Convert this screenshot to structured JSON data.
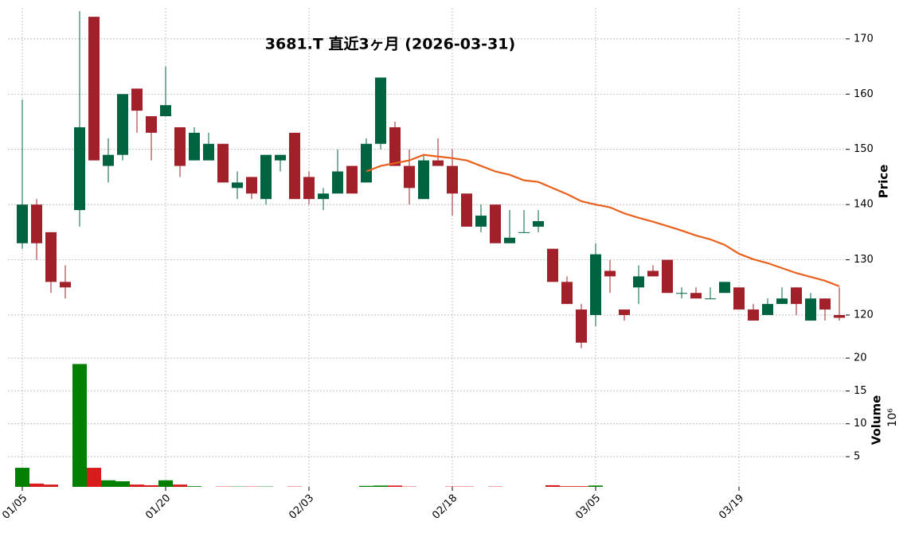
{
  "chart_data": [
    {
      "type": "candlestick",
      "title": "3681.T  直近3ヶ月 (2026-03-31)",
      "ylabel": "Price",
      "up_color": "#006340",
      "down_color": "#a1202a",
      "open": [
        133,
        140,
        135,
        126,
        139,
        174,
        147,
        149,
        161,
        156,
        156,
        154,
        148,
        148,
        151,
        143,
        145,
        141,
        148,
        153,
        145,
        141,
        142,
        147,
        144,
        151,
        154,
        147,
        141,
        148,
        147,
        142,
        136,
        140,
        133,
        135,
        136,
        132,
        126,
        121,
        120,
        128,
        121,
        125,
        128,
        130,
        124,
        124,
        123,
        124,
        125,
        121,
        120,
        122,
        125,
        119,
        123,
        120
      ],
      "high": [
        159,
        141,
        135,
        129,
        175,
        174,
        152,
        160,
        161,
        156,
        165,
        154,
        154,
        153,
        151,
        146,
        145,
        149,
        149,
        153,
        146,
        143,
        150,
        147,
        152,
        163,
        155,
        150,
        149,
        152,
        150,
        142,
        140,
        140,
        139,
        139,
        139,
        132,
        127,
        122,
        133,
        130,
        121,
        129,
        129,
        130,
        125,
        125,
        125,
        126,
        125,
        122,
        123,
        125,
        125,
        124,
        123,
        125
      ],
      "low": [
        132,
        130,
        124,
        123,
        136,
        148,
        144,
        148,
        153,
        148,
        156,
        145,
        148,
        148,
        144,
        141,
        141,
        140,
        146,
        141,
        140,
        139,
        142,
        142,
        144,
        150,
        147,
        140,
        141,
        147,
        138,
        136,
        135,
        133,
        133,
        135,
        135,
        126,
        122,
        114,
        118,
        124,
        119,
        122,
        127,
        124,
        123,
        123,
        123,
        124,
        121,
        119,
        120,
        122,
        120,
        119,
        119,
        119
      ],
      "close": [
        140,
        133,
        126,
        125,
        154,
        148,
        149,
        160,
        157,
        153,
        158,
        147,
        153,
        151,
        144,
        144,
        142,
        149,
        149,
        141,
        141,
        142,
        146,
        142,
        151,
        163,
        147,
        143,
        148,
        147,
        142,
        136,
        138,
        133,
        134,
        135,
        137,
        126,
        122,
        115,
        131,
        127,
        120,
        127,
        127,
        124,
        124,
        123,
        123,
        126,
        121,
        119,
        122,
        123,
        122,
        123,
        121,
        119.5
      ],
      "series": [
        {
          "color": "#e8601c",
          "values": [
            null,
            null,
            null,
            null,
            null,
            null,
            null,
            null,
            null,
            null,
            null,
            null,
            null,
            null,
            null,
            null,
            null,
            null,
            null,
            null,
            null,
            null,
            null,
            null,
            146,
            147,
            147.5,
            148,
            149,
            148.7,
            148.4,
            148,
            147,
            146,
            145.4,
            144.4,
            144.1,
            143,
            141.9,
            140.6,
            140,
            139.5,
            138.4,
            137.6,
            136.9,
            136.1,
            135.3,
            134.4,
            133.7,
            132.7,
            131.1,
            130.1,
            129.4,
            128.5,
            127.6,
            126.9,
            126.2,
            125.2
          ]
        }
      ],
      "ylim": [
        112.8,
        175.6
      ],
      "yticks": [
        120,
        130,
        140,
        150,
        160,
        170
      ],
      "grid": true
    },
    {
      "type": "bar",
      "ylabel": "Volume",
      "multiplier_label": "10⁶",
      "up_color": "#007f00",
      "down_color": "#d81c1c",
      "categories": [
        "01/05",
        null,
        null,
        null,
        null,
        null,
        null,
        null,
        null,
        null,
        "01/20",
        null,
        null,
        null,
        null,
        null,
        null,
        null,
        null,
        null,
        "02/03",
        null,
        null,
        null,
        null,
        null,
        null,
        null,
        null,
        null,
        "02/18",
        null,
        null,
        null,
        null,
        null,
        null,
        null,
        null,
        null,
        "03/05",
        null,
        null,
        null,
        null,
        null,
        null,
        null,
        null,
        null,
        "03/19",
        null,
        null,
        null,
        null,
        null,
        null,
        null
      ],
      "values": [
        3.3,
        0.9,
        0.75,
        0.4,
        19.1,
        3.3,
        1.4,
        1.25,
        0.75,
        0.65,
        1.4,
        0.75,
        0.5,
        0.4,
        0.45,
        0.45,
        0.45,
        0.45,
        0.4,
        0.45,
        0.4,
        0.4,
        0.4,
        0.4,
        0.55,
        0.6,
        0.6,
        0.45,
        0.4,
        0.4,
        0.45,
        0.45,
        0.4,
        0.45,
        0.4,
        0.4,
        0.4,
        0.65,
        0.5,
        0.5,
        0.6,
        0.4,
        0.4,
        0.4,
        0.4,
        0.4,
        0.4,
        0.4,
        0.4,
        0.4,
        0.4,
        0.4,
        0.4,
        0.4,
        0.4,
        0.4,
        0.4,
        0.4
      ],
      "ylim": [
        0.4,
        20.5
      ],
      "yticks": [
        5,
        10,
        15,
        20
      ],
      "grid": true
    }
  ]
}
